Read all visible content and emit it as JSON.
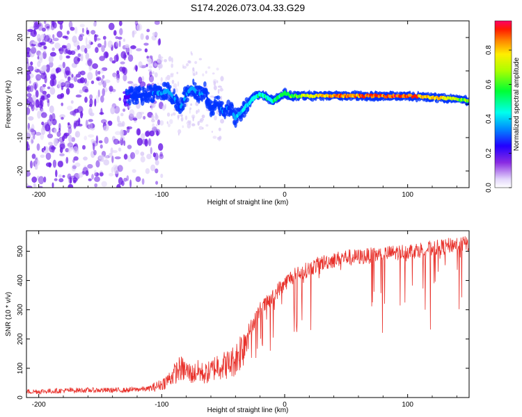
{
  "title": "S174.2026.073.04.33.G29",
  "colors": {
    "series": "#e8302a",
    "ridge_low": "#1a3cff",
    "ridge_high": "#ff1a1a",
    "scatter": "#6a1ae6",
    "rainbow": [
      "#e3e0fb",
      "#8a2be2",
      "#4b00ff",
      "#0033ff",
      "#00aaff",
      "#00ffee",
      "#00ff44",
      "#aaff00",
      "#ffee00",
      "#ff9900",
      "#ff1a00",
      "#ff0066"
    ]
  },
  "chart_data": [
    {
      "type": "heatmap",
      "title": "S174.2026.073.04.33.G29",
      "xlabel": "Height of straight line (km)",
      "ylabel": "Frequency (Hz)",
      "xlim": [
        -210,
        150
      ],
      "ylim": [
        -25,
        25
      ],
      "xticks": [
        -200,
        -100,
        0,
        100
      ],
      "yticks": [
        -20,
        -10,
        0,
        10,
        20
      ],
      "colorbar": {
        "label": "Normalized spectral amplitude",
        "range": [
          0,
          0.97
        ],
        "ticks": [
          0.0,
          0.2,
          0.4,
          0.6,
          0.8
        ]
      },
      "ridge": {
        "x": [
          -130,
          -120,
          -110,
          -100,
          -95,
          -90,
          -85,
          -80,
          -75,
          -70,
          -65,
          -60,
          -55,
          -50,
          -45,
          -40,
          -35,
          -30,
          -25,
          -20,
          -15,
          -10,
          -5,
          0,
          5,
          10,
          20,
          40,
          60,
          80,
          100,
          110,
          120,
          130,
          140,
          150
        ],
        "freq": [
          2,
          2.5,
          3,
          3.5,
          4,
          2,
          -1,
          3,
          5,
          3,
          4,
          -1,
          0,
          -2,
          -1,
          -4,
          -2,
          0,
          2,
          3,
          2,
          1,
          2,
          3.5,
          2.5,
          2.5,
          2.5,
          2.5,
          2.5,
          2.5,
          2.5,
          2.3,
          2,
          1.8,
          1.5,
          1
        ],
        "amp": [
          0.2,
          0.3,
          0.3,
          0.35,
          0.4,
          0.35,
          0.3,
          0.35,
          0.4,
          0.35,
          0.3,
          0.3,
          0.3,
          0.35,
          0.3,
          0.4,
          0.4,
          0.45,
          0.5,
          0.5,
          0.5,
          0.5,
          0.55,
          0.55,
          0.6,
          0.65,
          0.75,
          0.85,
          0.9,
          0.9,
          0.92,
          0.85,
          0.8,
          0.75,
          0.7,
          0.6
        ]
      }
    },
    {
      "type": "line",
      "xlabel": "Height of straight line (km)",
      "ylabel": "SNR (10 * v/v)",
      "xlim": [
        -210,
        150
      ],
      "ylim": [
        0,
        570
      ],
      "xticks": [
        -200,
        -100,
        0,
        100
      ],
      "yticks": [
        0,
        100,
        200,
        300,
        400,
        500
      ],
      "series": [
        {
          "name": "SNR",
          "x": [
            -210,
            -190,
            -170,
            -150,
            -130,
            -120,
            -110,
            -100,
            -95,
            -90,
            -85,
            -80,
            -75,
            -70,
            -65,
            -60,
            -55,
            -50,
            -45,
            -40,
            -35,
            -30,
            -25,
            -20,
            -15,
            -10,
            -5,
            0,
            5,
            10,
            20,
            30,
            40,
            50,
            60,
            70,
            80,
            90,
            100,
            110,
            120,
            130,
            140,
            150
          ],
          "values": [
            20,
            22,
            25,
            25,
            25,
            28,
            30,
            45,
            60,
            80,
            100,
            90,
            80,
            90,
            80,
            90,
            110,
            110,
            115,
            130,
            170,
            220,
            260,
            300,
            320,
            340,
            370,
            390,
            410,
            420,
            440,
            460,
            470,
            480,
            480,
            485,
            490,
            495,
            500,
            505,
            510,
            515,
            525,
            525
          ]
        }
      ]
    }
  ]
}
